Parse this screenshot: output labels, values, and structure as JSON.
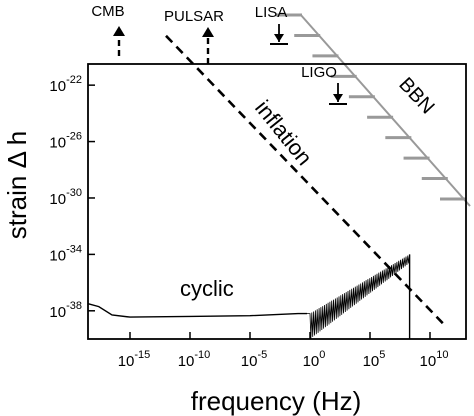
{
  "chart_data": {
    "type": "line",
    "xlabel": "frequency  (Hz)",
    "ylabel": "strain Δ h",
    "x_scale": "log",
    "y_scale": "log",
    "xlim_exp": [
      -18.5,
      13
    ],
    "ylim_exp": [
      -40,
      -20.5
    ],
    "x_ticks": [
      {
        "base": "10",
        "exp": "-15",
        "value": -15
      },
      {
        "base": "10",
        "exp": "-10",
        "value": -10
      },
      {
        "base": "10",
        "exp": "-5",
        "value": -5
      },
      {
        "base": "10",
        "exp": "0",
        "value": 0
      },
      {
        "base": "10",
        "exp": "5",
        "value": 5
      },
      {
        "base": "10",
        "exp": "10",
        "value": 10
      }
    ],
    "y_ticks": [
      {
        "base": "10",
        "exp": "-22",
        "value": -22
      },
      {
        "base": "10",
        "exp": "-26",
        "value": -26
      },
      {
        "base": "10",
        "exp": "-30",
        "value": -30
      },
      {
        "base": "10",
        "exp": "-34",
        "value": -34
      },
      {
        "base": "10",
        "exp": "-38",
        "value": -38
      }
    ],
    "series": [
      {
        "name": "inflation",
        "style": "dashed",
        "x_exp": [
          -12,
          11.2
        ],
        "y_exp": [
          -18.5,
          -39.0
        ]
      },
      {
        "name": "cyclic",
        "style": "solid",
        "x_exp": [
          -18.5,
          -17.6,
          -16.5,
          -15,
          -10,
          -5,
          -1,
          -0.25
        ],
        "y_exp": [
          -37.5,
          -37.7,
          -38.3,
          -38.45,
          -38.4,
          -38.35,
          -38.2,
          -38.2
        ],
        "oscillation_x_exp": [
          0,
          8.3
        ],
        "oscillation_envelope_upper_y_exp": [
          -38.2,
          -34.0
        ],
        "oscillation_envelope_lower_y_exp": [
          -40.0,
          -34.6
        ],
        "cutoff_x_exp": 8.3
      }
    ],
    "annotations": [
      {
        "label": "CMB",
        "x_exp": -16.5,
        "marker": "dashed-up-arrow"
      },
      {
        "label": "PULSAR",
        "x_exp": -10.5,
        "marker": "dashed-up-arrow"
      },
      {
        "label": "LISA",
        "x_exp": -2.5,
        "marker": "down-arrow-bar"
      },
      {
        "label": "LIGO",
        "x_exp": 2.5,
        "marker": "down-arrow-bar"
      },
      {
        "label": "BBN",
        "marker": "hatched-bound"
      }
    ],
    "colors": {
      "axis": "#000000",
      "curve": "#000000",
      "bbn_bound": "#999999"
    }
  }
}
